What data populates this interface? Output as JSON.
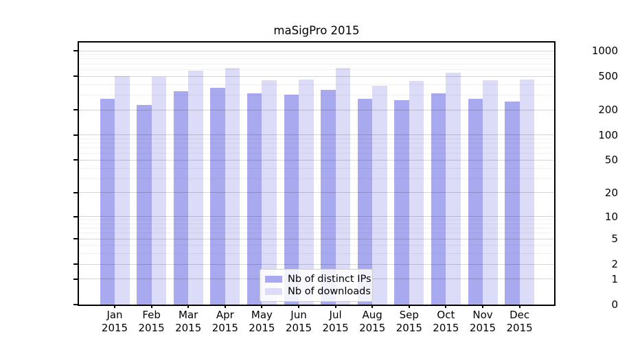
{
  "title": "maSigPro 2015",
  "colors": {
    "ips_bar": "#a9a9f0",
    "downloads_bar": "#dcdcf8",
    "axis": "#000000",
    "grid_major": "rgba(0,0,0,0.17)",
    "grid_minor": "rgba(0,0,0,0.055)",
    "legend_border": "#cccccc",
    "text": "#000000"
  },
  "chart_data": {
    "type": "bar",
    "title": "maSigPro 2015",
    "categories": [
      "Jan 2015",
      "Feb 2015",
      "Mar 2015",
      "Apr 2015",
      "May 2015",
      "Jun 2015",
      "Jul 2015",
      "Aug 2015",
      "Sep 2015",
      "Oct 2015",
      "Nov 2015",
      "Dec 2015"
    ],
    "series": [
      {
        "name": "Nb of distinct IPs",
        "color": "#a9a9f0",
        "values": [
          270,
          228,
          334,
          362,
          316,
          302,
          345,
          272,
          260,
          316,
          268,
          252
        ]
      },
      {
        "name": "Nb of downloads",
        "color": "#dcdcf8",
        "values": [
          500,
          490,
          580,
          622,
          448,
          458,
          632,
          387,
          442,
          553,
          445,
          453
        ]
      }
    ],
    "xlabel": "",
    "ylabel": "",
    "y_scale": "log10(1+x)",
    "y_major_ticks": [
      0,
      1,
      2,
      5,
      10,
      20,
      50,
      100,
      200,
      500,
      1000
    ],
    "y_minor_ticks": [
      3,
      4,
      6,
      7,
      8,
      9,
      30,
      40,
      60,
      70,
      80,
      90,
      300,
      400,
      600,
      700,
      800,
      900
    ],
    "ylim": [
      0,
      1300
    ],
    "grid": true,
    "legend_position": "lower-center"
  }
}
